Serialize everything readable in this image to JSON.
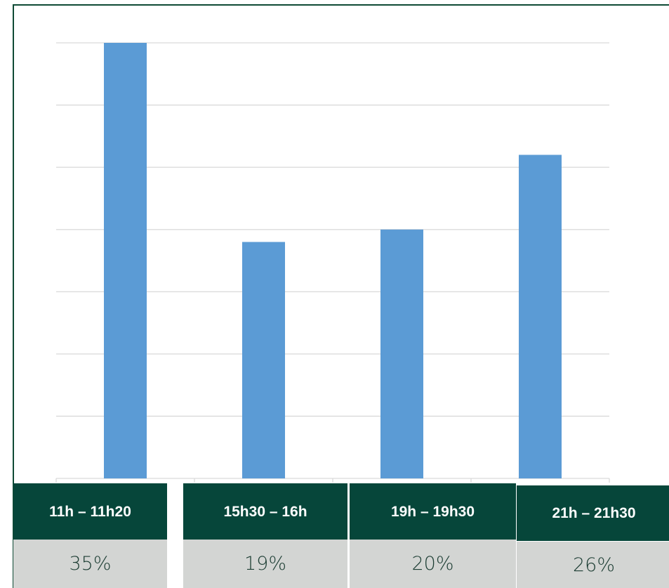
{
  "chart_data": {
    "type": "bar",
    "categories": [
      "11h – 11h20",
      "15h30 – 16h",
      "19h – 19h30",
      "21h – 21h30"
    ],
    "values": [
      35,
      19,
      20,
      26
    ],
    "value_labels": [
      "35%",
      "19%",
      "20%",
      "26%"
    ],
    "ylim": [
      0,
      35
    ],
    "gridlines": 7,
    "grid": true,
    "legend": "none",
    "title": "",
    "xlabel": "",
    "ylabel": ""
  },
  "colors": {
    "bar": "#5b9bd5",
    "gridline": "#d9d9d9",
    "frame": "#0f4a35",
    "header_bg": "#06463a",
    "header_text": "#ffffff",
    "value_bg": "#d3d5d3",
    "value_text": "#1c3d33"
  }
}
